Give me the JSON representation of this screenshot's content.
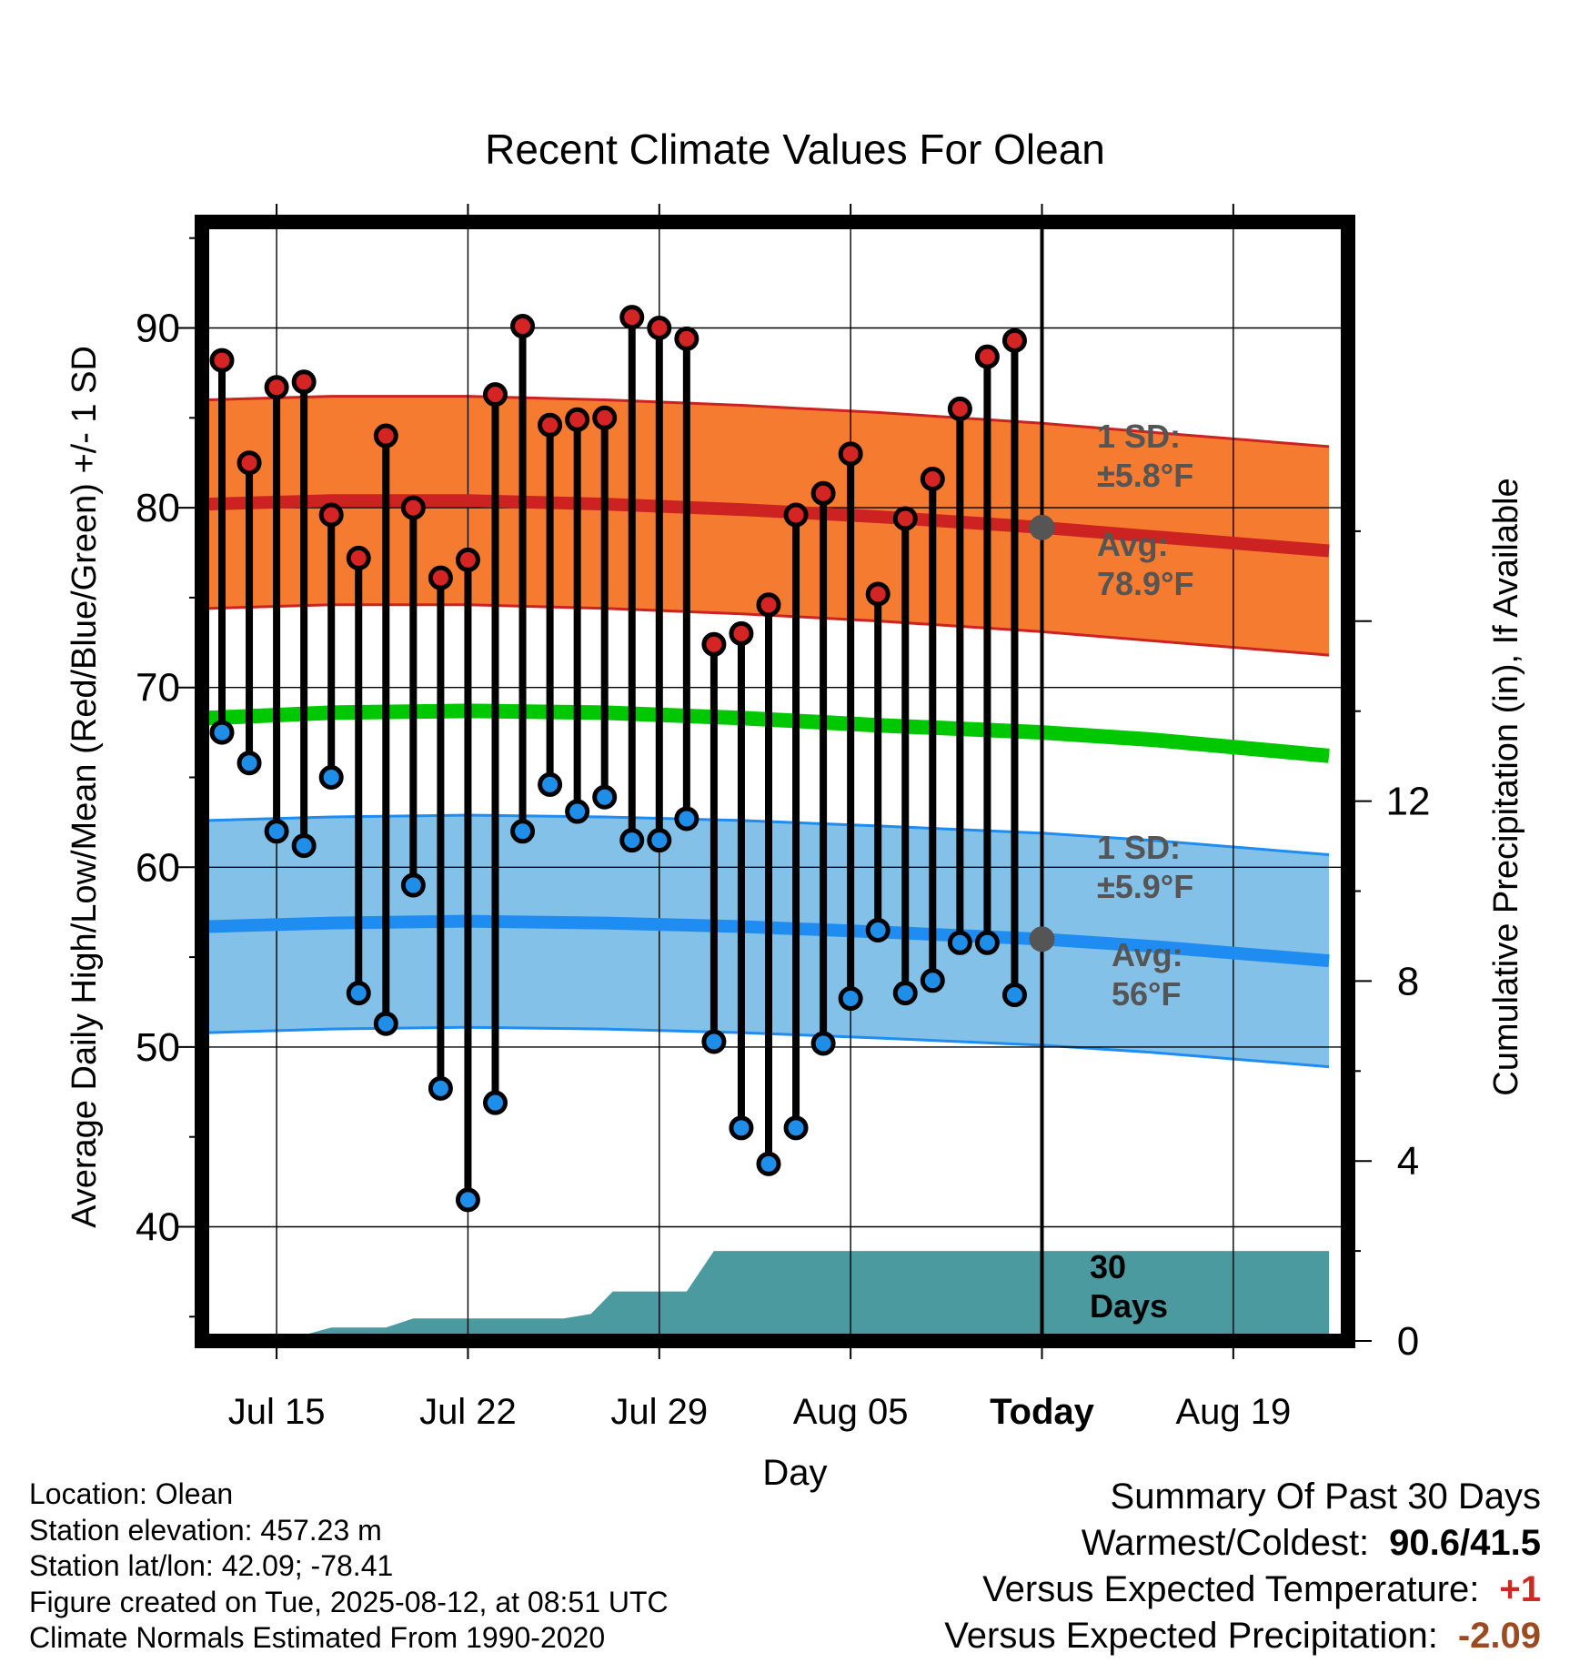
{
  "chart_data": {
    "type": "line",
    "title": "Recent Climate Values For Olean",
    "xlabel": "Day",
    "ylabel": "Average Daily High/Low/Mean (Red/Blue/Green) +/- 1 SD",
    "y2label": "Cumulative Precipitation (in), If Available",
    "xticks": [
      {
        "day": 3,
        "label": "Jul 15"
      },
      {
        "day": 10,
        "label": "Jul 22"
      },
      {
        "day": 17,
        "label": "Jul 29"
      },
      {
        "day": 24,
        "label": "Aug 05"
      },
      {
        "day": 31,
        "label": "Today"
      },
      {
        "day": 38,
        "label": "Aug 19"
      }
    ],
    "xlim": [
      0,
      41.5
    ],
    "ylim": [
      34,
      96
    ],
    "yticks": [
      40,
      50,
      60,
      70,
      80,
      90
    ],
    "y2lim": [
      0,
      18.5
    ],
    "y2ticks": [
      0,
      4,
      8,
      12
    ],
    "today_day": 31,
    "days": [
      1,
      2,
      3,
      4,
      5,
      6,
      7,
      8,
      9,
      10,
      11,
      12,
      13,
      14,
      15,
      16,
      17,
      18,
      19,
      20,
      21,
      22,
      23,
      24,
      25,
      26,
      27,
      28,
      29,
      30
    ],
    "highs": [
      88.2,
      82.5,
      86.7,
      87.0,
      79.6,
      77.2,
      84.0,
      80.0,
      76.1,
      77.1,
      86.3,
      90.1,
      84.6,
      84.9,
      85.0,
      90.6,
      90.0,
      89.4,
      72.4,
      73.0,
      74.6,
      79.6,
      80.8,
      83.0,
      75.2,
      79.4,
      81.6,
      85.5,
      88.4,
      89.3
    ],
    "lows": [
      67.5,
      65.8,
      62.0,
      61.2,
      65.0,
      53.0,
      51.3,
      59.0,
      47.7,
      41.5,
      46.9,
      62.0,
      64.6,
      63.1,
      63.9,
      61.5,
      61.5,
      62.7,
      50.3,
      45.5,
      43.5,
      45.5,
      50.2,
      52.7,
      56.5,
      53.0,
      53.7,
      55.8,
      55.8,
      52.9
    ],
    "normal_high": [
      [
        0.5,
        80.2
      ],
      [
        5,
        80.4
      ],
      [
        10,
        80.4
      ],
      [
        15,
        80.2
      ],
      [
        20,
        79.9
      ],
      [
        25,
        79.5
      ],
      [
        31,
        78.9
      ],
      [
        35,
        78.4
      ],
      [
        41.5,
        77.6
      ]
    ],
    "normal_high_sd": 5.8,
    "normal_low": [
      [
        0.5,
        56.7
      ],
      [
        5,
        56.9
      ],
      [
        10,
        57.0
      ],
      [
        15,
        56.9
      ],
      [
        20,
        56.7
      ],
      [
        25,
        56.4
      ],
      [
        31,
        56.0
      ],
      [
        35,
        55.6
      ],
      [
        41.5,
        54.8
      ]
    ],
    "normal_low_sd": 5.9,
    "normal_mean": [
      [
        0.5,
        68.3
      ],
      [
        5,
        68.6
      ],
      [
        10,
        68.7
      ],
      [
        15,
        68.6
      ],
      [
        20,
        68.3
      ],
      [
        25,
        67.9
      ],
      [
        31,
        67.5
      ],
      [
        35,
        67.1
      ],
      [
        41.5,
        66.2
      ]
    ],
    "precip_cum": [
      [
        0.5,
        0
      ],
      [
        2.5,
        0
      ],
      [
        3.5,
        0.05
      ],
      [
        5,
        0.3
      ],
      [
        7,
        0.3
      ],
      [
        8,
        0.5
      ],
      [
        13.5,
        0.5
      ],
      [
        14.5,
        0.6
      ],
      [
        15.3,
        1.1
      ],
      [
        18,
        1.1
      ],
      [
        19,
        2.0
      ],
      [
        41.5,
        2.0
      ]
    ],
    "annotations": [
      {
        "id": "high_sd",
        "lines": [
          "1 SD:",
          "±5.8°F"
        ]
      },
      {
        "id": "high_avg",
        "lines": [
          "Avg:",
          "78.9°F"
        ]
      },
      {
        "id": "low_sd",
        "lines": [
          "1 SD:",
          "±5.9°F"
        ]
      },
      {
        "id": "low_avg",
        "lines": [
          "Avg:",
          "56°F"
        ]
      },
      {
        "id": "precip_days",
        "lines": [
          "30",
          "Days"
        ]
      }
    ],
    "grid": true
  },
  "info": {
    "location": "Location: Olean",
    "elevation": "Station elevation: 457.23 m",
    "latlon": "Station lat/lon: 42.09; -78.41",
    "created": "Figure created on Tue, 2025-08-12, at 08:51 UTC",
    "normals": "Climate Normals Estimated From 1990-2020"
  },
  "summary": {
    "title": "Summary Of Past 30 Days",
    "warmest_label": "Warmest/Coldest:",
    "warmest_value": "90.6/41.5",
    "temp_label": "Versus Expected Temperature:",
    "temp_value": "+1",
    "precip_label": "Versus Expected Precipitation:",
    "precip_value": "-2.09"
  },
  "colors": {
    "high_band": "#f47b2f",
    "high_line": "#cc2222",
    "low_band": "#84c1e8",
    "low_line": "#1e8cf0",
    "mean_line": "#00c800",
    "precip_fill": "#4a9aa0",
    "high_marker": "#d42424",
    "low_marker": "#1f8ee8",
    "annotation_text": "#555555",
    "temp_anomaly": "#cc2a22",
    "precip_anomaly": "#9c4a20"
  }
}
